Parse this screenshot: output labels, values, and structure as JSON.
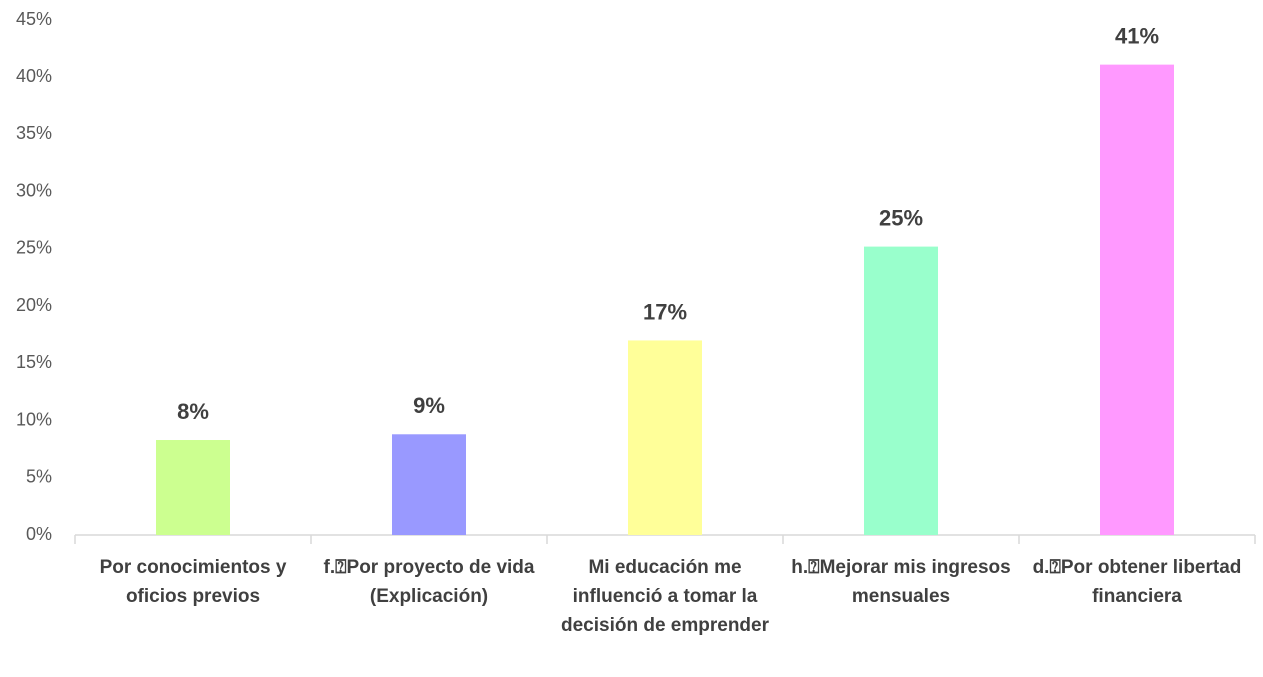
{
  "chart_data": {
    "type": "bar",
    "categories": [
      "Por conocimientos y oficios previos",
      "f.⍰Por proyecto de vida (Explicación)",
      "Mi educación me influenció a tomar la decisión de emprender",
      "h.⍰Mejorar mis ingresos mensuales",
      "d.⍰Por obtener libertad financiera"
    ],
    "values": [
      8.3,
      8.8,
      17.0,
      25.2,
      41.1
    ],
    "value_labels": [
      "8%",
      "9%",
      "17%",
      "25%",
      "41%"
    ],
    "colors": [
      "#ccff90",
      "#9999ff",
      "#ffff99",
      "#99ffcc",
      "#ff99ff"
    ],
    "ylim": [
      0,
      45
    ],
    "yticks": [
      {
        "value": 0,
        "label": "0%"
      },
      {
        "value": 5,
        "label": "5%"
      },
      {
        "value": 10,
        "label": "10%"
      },
      {
        "value": 15,
        "label": "15%"
      },
      {
        "value": 20,
        "label": "20%"
      },
      {
        "value": 25,
        "label": "25%"
      },
      {
        "value": 30,
        "label": "30%"
      },
      {
        "value": 35,
        "label": "35%"
      },
      {
        "value": 40,
        "label": "40%"
      },
      {
        "value": 45,
        "label": "45%"
      }
    ],
    "grid": false
  }
}
